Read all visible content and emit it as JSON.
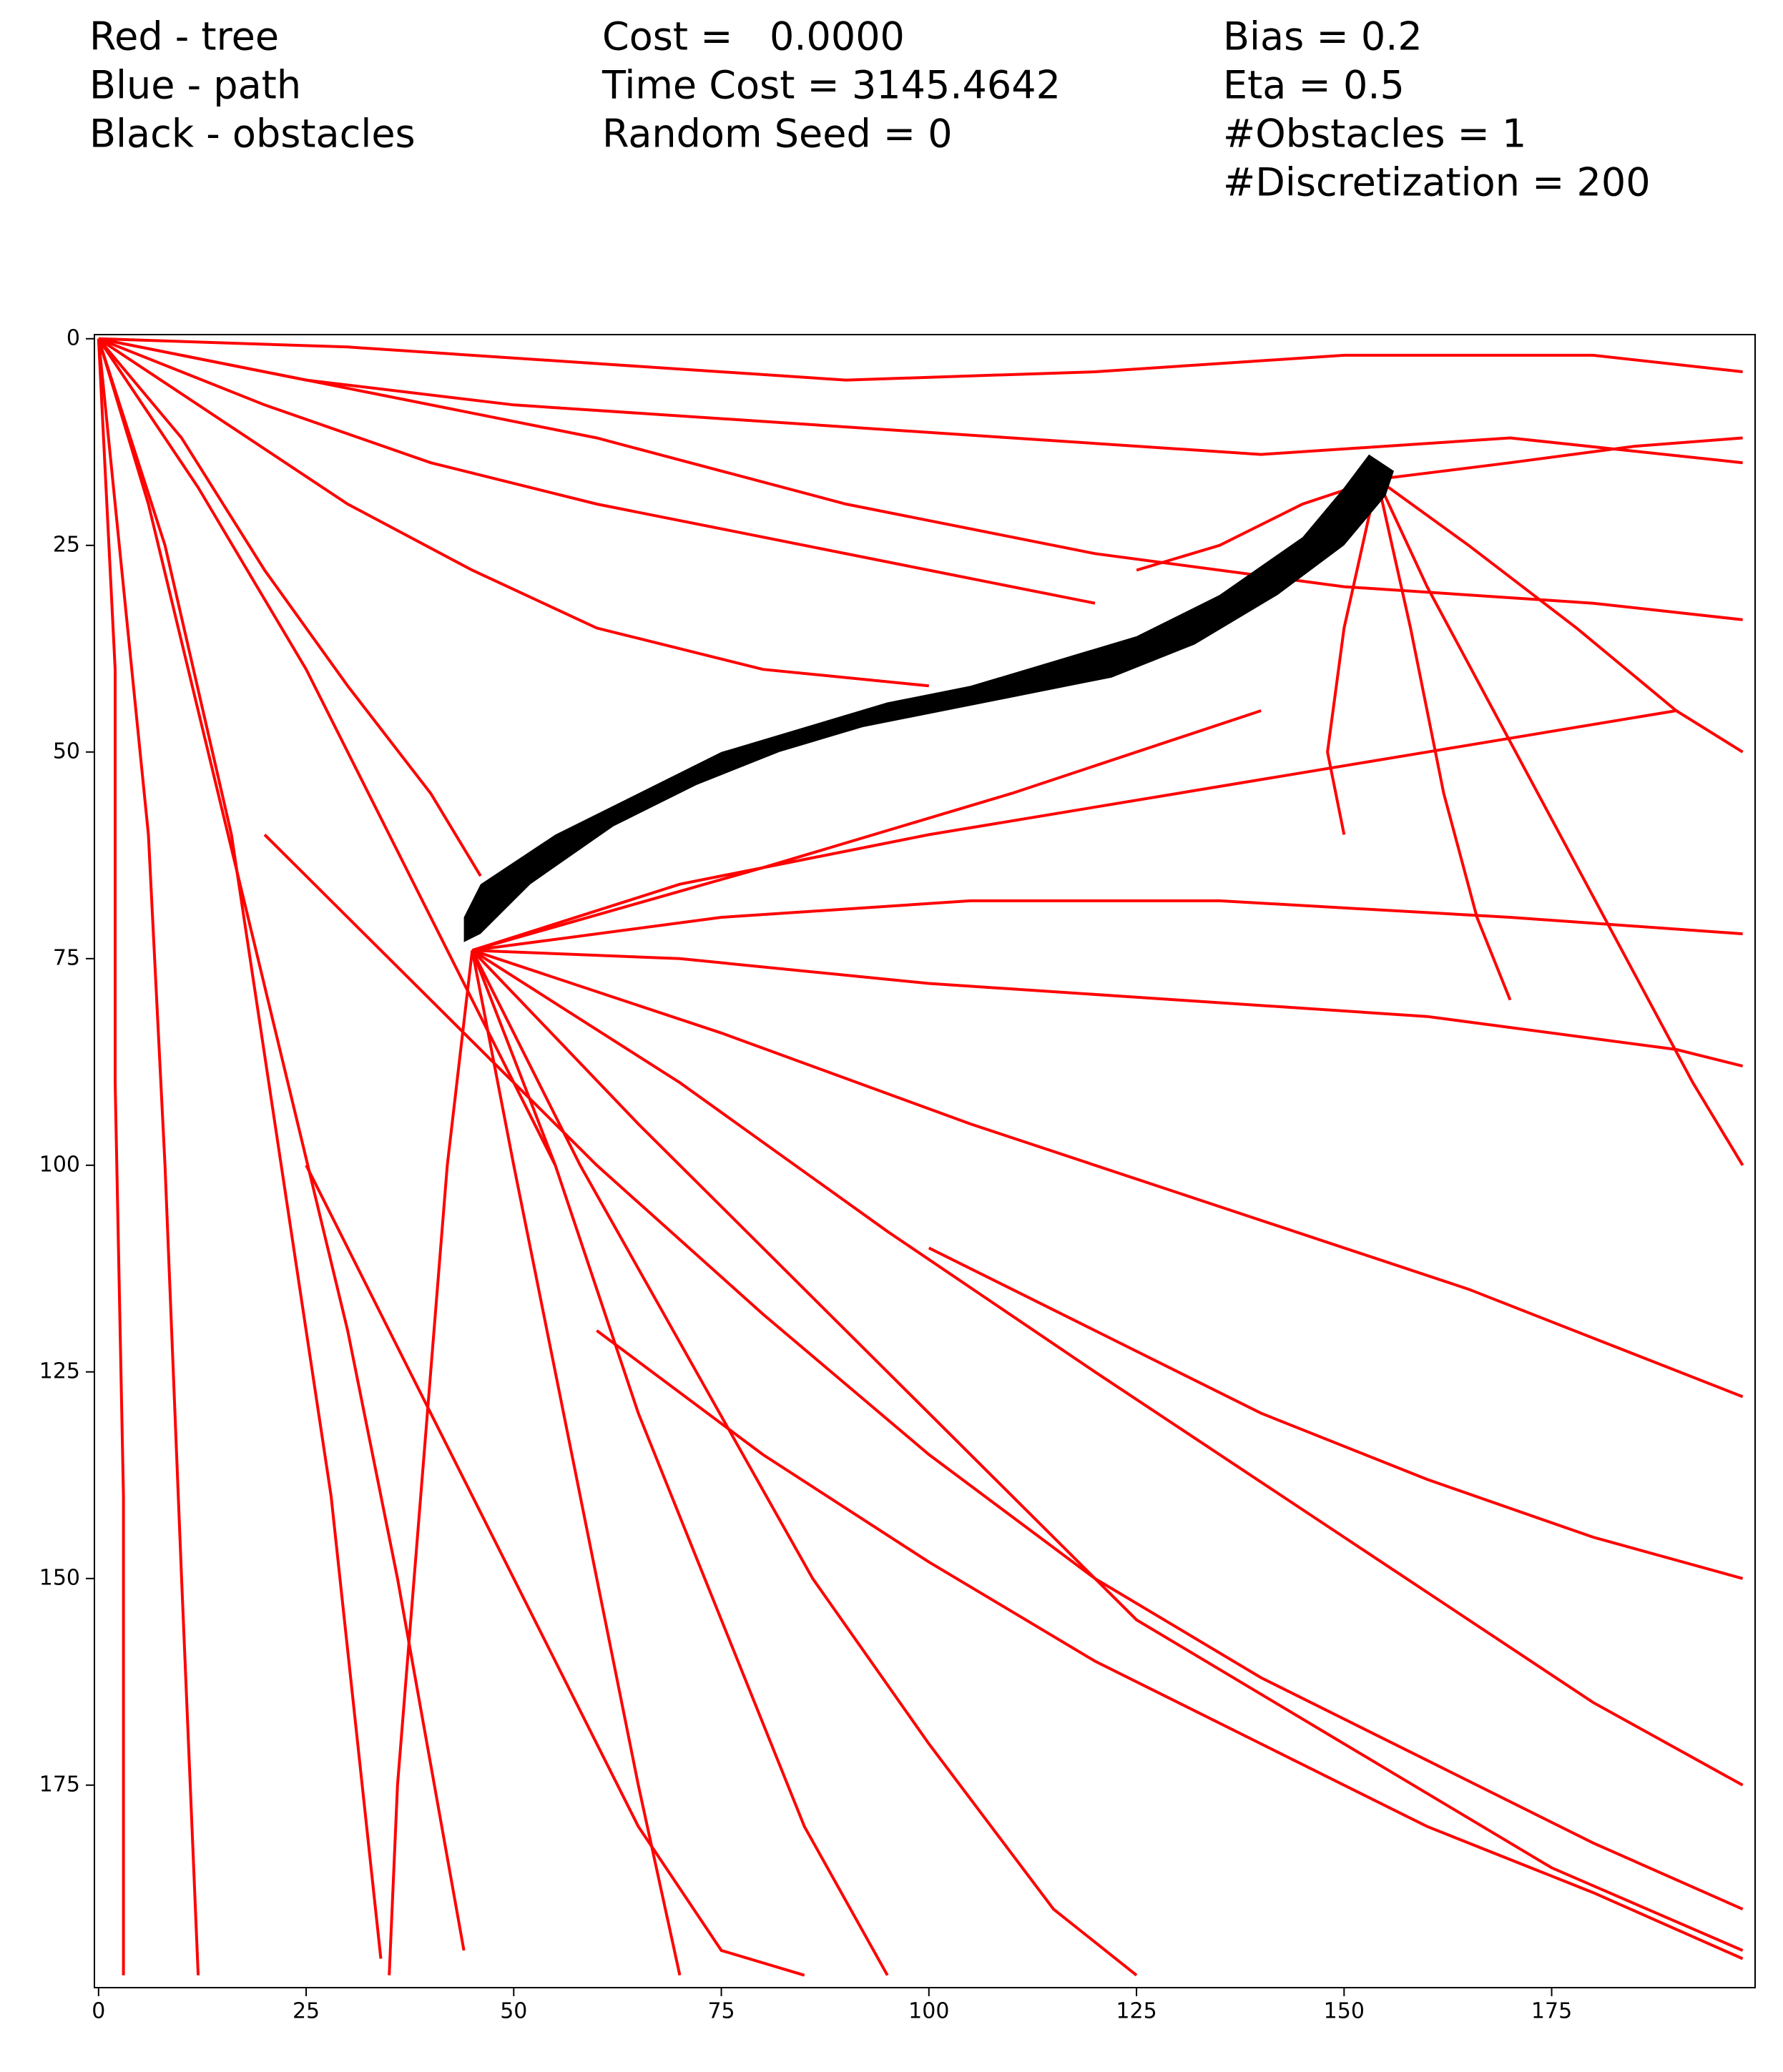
{
  "chart_data": {
    "type": "tree",
    "legend_text": [
      "Red - tree",
      "Blue - path",
      "Black - obstacles"
    ],
    "stats_text": [
      "Cost =   0.0000",
      "Time Cost = 3145.4642",
      "Random Seed = 0"
    ],
    "params_text": [
      "Bias = 0.2",
      "Eta = 0.5",
      "#Obstacles = 1",
      "#Discretization = 200"
    ],
    "xlim": [
      -0.5,
      199.5
    ],
    "ylim": [
      199.5,
      -0.5
    ],
    "xticks": [
      0,
      25,
      50,
      75,
      100,
      125,
      150,
      175
    ],
    "yticks": [
      0,
      25,
      50,
      75,
      100,
      125,
      150,
      175
    ],
    "tree_color": "#ff0000",
    "obstacle_color": "#000000",
    "obstacle": {
      "x": [
        44,
        46,
        55,
        65,
        75,
        85,
        95,
        105,
        115,
        125,
        135,
        145,
        150,
        153,
        156,
        155,
        150,
        142,
        132,
        122,
        112,
        102,
        92,
        82,
        72,
        62,
        52,
        46,
        44
      ],
      "y": [
        70,
        66,
        60,
        55,
        50,
        47,
        44,
        42,
        39,
        36,
        31,
        24,
        18,
        14,
        16,
        19,
        25,
        31,
        37,
        41,
        43,
        45,
        47,
        50,
        54,
        59,
        66,
        72,
        73
      ]
    },
    "branches": [
      {
        "x": [
          0,
          30,
          60,
          90,
          120,
          150,
          180,
          198
        ],
        "y": [
          0,
          1,
          3,
          5,
          4,
          2,
          2,
          4
        ]
      },
      {
        "x": [
          0,
          25,
          50,
          80,
          110,
          140,
          170,
          198
        ],
        "y": [
          0,
          5,
          8,
          10,
          12,
          14,
          12,
          15
        ]
      },
      {
        "x": [
          0,
          20,
          40,
          60,
          80,
          100,
          120
        ],
        "y": [
          0,
          8,
          15,
          20,
          24,
          28,
          32
        ]
      },
      {
        "x": [
          0,
          15,
          30,
          45,
          60,
          80,
          100
        ],
        "y": [
          0,
          10,
          20,
          28,
          35,
          40,
          42
        ]
      },
      {
        "x": [
          0,
          10,
          20,
          30,
          40,
          46
        ],
        "y": [
          0,
          12,
          28,
          42,
          55,
          65
        ]
      },
      {
        "x": [
          0,
          6,
          12,
          18,
          24,
          30,
          36,
          44
        ],
        "y": [
          0,
          20,
          45,
          70,
          95,
          120,
          150,
          195
        ]
      },
      {
        "x": [
          0,
          3,
          6,
          8,
          10,
          12
        ],
        "y": [
          0,
          30,
          60,
          100,
          150,
          198
        ]
      },
      {
        "x": [
          0,
          2,
          2,
          3,
          3
        ],
        "y": [
          0,
          40,
          90,
          140,
          198
        ]
      },
      {
        "x": [
          0,
          8,
          16,
          22,
          28,
          34
        ],
        "y": [
          0,
          25,
          60,
          100,
          140,
          196
        ]
      },
      {
        "x": [
          0,
          12,
          25,
          35,
          45,
          55
        ],
        "y": [
          0,
          18,
          40,
          60,
          80,
          100
        ]
      },
      {
        "x": [
          45,
          70,
          100,
          130,
          160,
          190,
          198
        ],
        "y": [
          74,
          75,
          78,
          80,
          82,
          86,
          88
        ]
      },
      {
        "x": [
          45,
          75,
          105,
          135,
          165,
          198
        ],
        "y": [
          74,
          84,
          95,
          105,
          115,
          128
        ]
      },
      {
        "x": [
          45,
          70,
          95,
          120,
          150,
          180,
          198
        ],
        "y": [
          74,
          90,
          108,
          125,
          145,
          165,
          175
        ]
      },
      {
        "x": [
          45,
          65,
          85,
          105,
          125,
          150,
          175,
          198
        ],
        "y": [
          74,
          95,
          115,
          135,
          155,
          170,
          185,
          195
        ]
      },
      {
        "x": [
          45,
          58,
          72,
          86,
          100,
          115,
          125
        ],
        "y": [
          74,
          100,
          125,
          150,
          170,
          190,
          198
        ]
      },
      {
        "x": [
          45,
          55,
          65,
          75,
          85,
          95
        ],
        "y": [
          74,
          100,
          130,
          155,
          180,
          198
        ]
      },
      {
        "x": [
          45,
          50,
          55,
          60,
          65,
          70
        ],
        "y": [
          74,
          100,
          125,
          150,
          175,
          198
        ]
      },
      {
        "x": [
          45,
          70,
          100,
          130,
          160,
          190
        ],
        "y": [
          74,
          66,
          60,
          55,
          50,
          45
        ]
      },
      {
        "x": [
          45,
          75,
          105,
          135,
          170,
          198
        ],
        "y": [
          74,
          70,
          68,
          68,
          70,
          72
        ]
      },
      {
        "x": [
          45,
          80,
          110,
          140
        ],
        "y": [
          74,
          64,
          55,
          45
        ]
      },
      {
        "x": [
          45,
          42,
          40,
          38,
          36,
          35
        ],
        "y": [
          74,
          100,
          125,
          150,
          175,
          198
        ]
      },
      {
        "x": [
          154,
          160,
          168,
          176,
          184,
          192,
          198
        ],
        "y": [
          17,
          30,
          45,
          60,
          75,
          90,
          100
        ]
      },
      {
        "x": [
          154,
          165,
          178,
          190,
          198
        ],
        "y": [
          17,
          25,
          35,
          45,
          50
        ]
      },
      {
        "x": [
          154,
          158,
          162,
          166,
          170
        ],
        "y": [
          17,
          35,
          55,
          70,
          80
        ]
      },
      {
        "x": [
          154,
          150,
          148,
          150
        ],
        "y": [
          17,
          35,
          50,
          60
        ]
      },
      {
        "x": [
          154,
          170,
          185,
          198
        ],
        "y": [
          17,
          15,
          13,
          12
        ]
      },
      {
        "x": [
          154,
          145,
          135,
          125
        ],
        "y": [
          17,
          20,
          25,
          28
        ]
      },
      {
        "x": [
          0,
          30,
          60,
          90,
          120,
          150,
          180,
          198
        ],
        "y": [
          0,
          6,
          12,
          20,
          26,
          30,
          32,
          34
        ]
      },
      {
        "x": [
          20,
          40,
          60,
          80,
          100,
          120,
          140,
          160,
          180,
          198
        ],
        "y": [
          60,
          80,
          100,
          118,
          135,
          150,
          162,
          172,
          182,
          190
        ]
      },
      {
        "x": [
          60,
          80,
          100,
          120,
          140,
          160,
          180,
          198
        ],
        "y": [
          120,
          135,
          148,
          160,
          170,
          180,
          188,
          196
        ]
      },
      {
        "x": [
          100,
          120,
          140,
          160,
          180,
          198
        ],
        "y": [
          110,
          120,
          130,
          138,
          145,
          150
        ]
      },
      {
        "x": [
          25,
          35,
          45,
          55,
          65,
          75,
          85
        ],
        "y": [
          100,
          120,
          140,
          160,
          180,
          195,
          198
        ]
      }
    ]
  }
}
